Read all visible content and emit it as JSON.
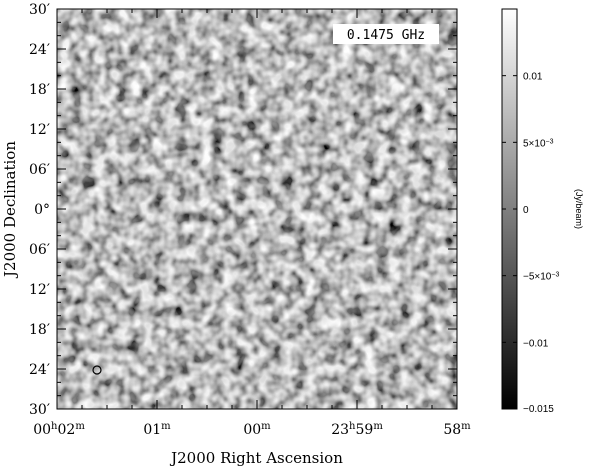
{
  "chart_data": {
    "type": "heatmap",
    "image_kind": "greyscale radio continuum map (noise field)",
    "frequency_label": "0.1475 GHz",
    "xlabel": "J2000 Right Ascension",
    "ylabel": "J2000 Declination",
    "x_ticks": [
      {
        "h": "00",
        "hs": "h",
        "m": "02",
        "ms": "m"
      },
      {
        "h": "",
        "hs": "",
        "m": "01",
        "ms": "m"
      },
      {
        "h": "",
        "hs": "",
        "m": "00",
        "ms": "m"
      },
      {
        "h": "23",
        "hs": "h",
        "m": "59",
        "ms": "m"
      },
      {
        "h": "",
        "hs": "",
        "m": "58",
        "ms": "m"
      }
    ],
    "y_ticks": [
      "30′",
      "24′",
      "18′",
      "12′",
      "06′",
      "0°",
      "06′",
      "12′",
      "18′",
      "24′",
      "30′"
    ],
    "colorbar": {
      "unit": "(Jy/beam)",
      "range": [
        -0.015,
        0.015
      ],
      "colormap": "grey",
      "ticks": [
        {
          "value": 0.01,
          "label": "0.01",
          "exp": ""
        },
        {
          "value": 0.005,
          "label": "5×10",
          "exp": "−3"
        },
        {
          "value": 0,
          "label": "0",
          "exp": ""
        },
        {
          "value": -0.005,
          "label": "−5×10",
          "exp": "−3"
        },
        {
          "value": -0.01,
          "label": "−0.01",
          "exp": ""
        },
        {
          "value": -0.015,
          "label": "−0.015",
          "exp": ""
        }
      ]
    },
    "beam_marker": "circle, lower-left corner"
  }
}
